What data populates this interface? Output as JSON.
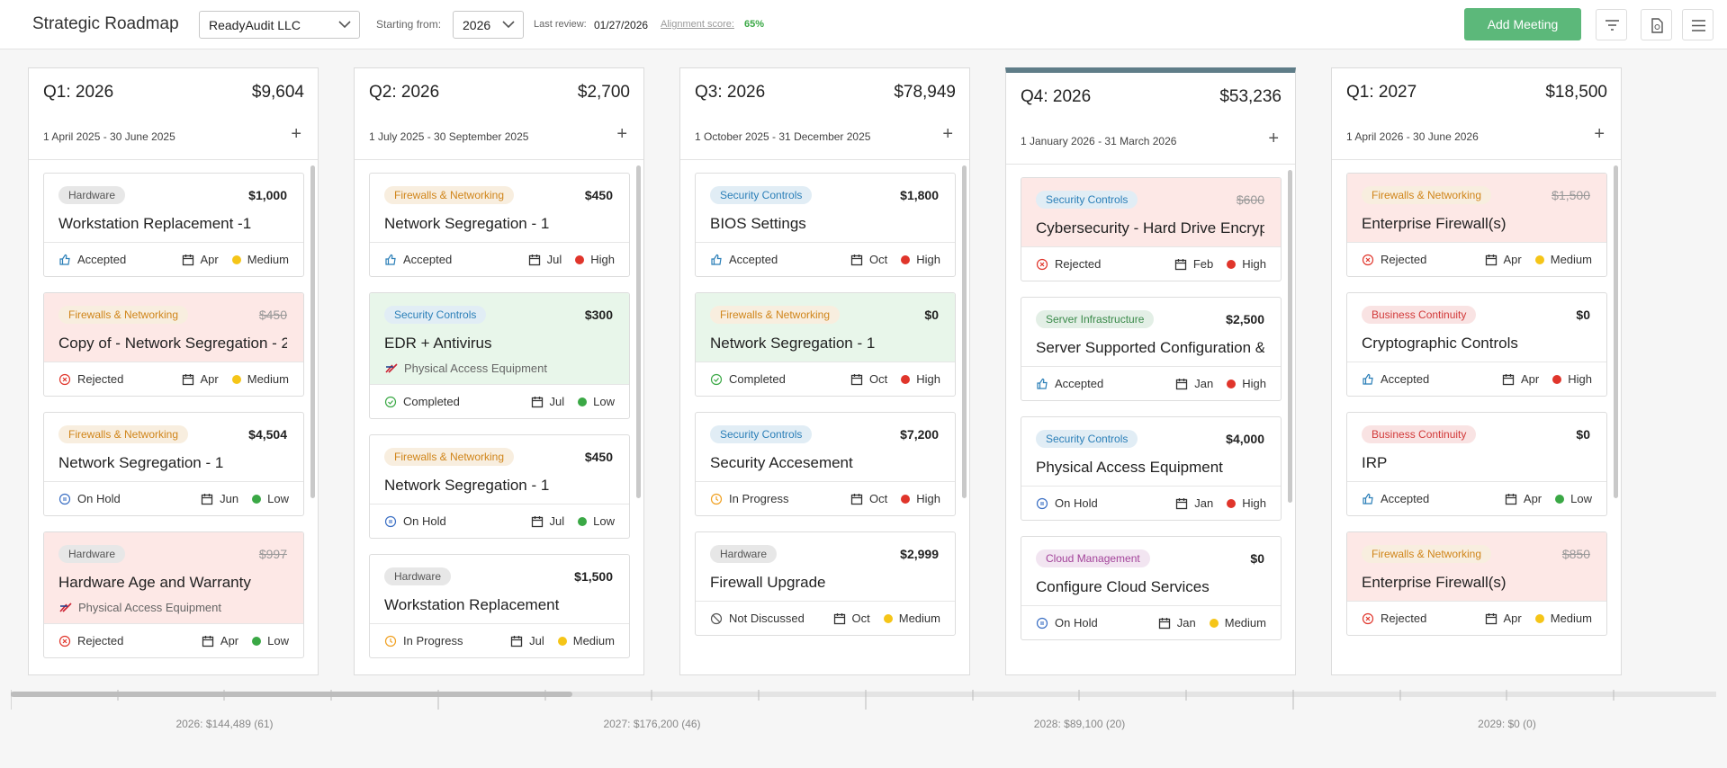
{
  "header": {
    "title": "Strategic Roadmap",
    "company": "ReadyAudit LLC",
    "starting_label": "Starting from:",
    "year": "2026",
    "last_review_label": "Last review:",
    "last_review": "01/27/2026",
    "alignment_label": "Alignment score:",
    "alignment": "65%",
    "add_button": "Add Meeting"
  },
  "columns": [
    {
      "title": "Q1: 2026",
      "total": "$9,604",
      "dates": "1 April 2025 - 30 June 2025",
      "cards": [
        {
          "tag": "Hardware",
          "tag_color": "#555555",
          "amount": "$1,000",
          "title": "Workstation Replacement -1",
          "status": "Accepted",
          "status_icon": "thumb",
          "month": "Apr",
          "priority": "Medium",
          "priority_color": "#f5c518"
        },
        {
          "tag": "Firewalls & Networking",
          "tag_color": "#d0851a",
          "amount": "$450",
          "struck": true,
          "card_color": "#fde8e6",
          "title": "Copy of - Network Segregation - 2",
          "status": "Rejected",
          "status_icon": "x",
          "month": "Apr",
          "priority": "Medium",
          "priority_color": "#f5c518"
        },
        {
          "tag": "Firewalls & Networking",
          "tag_color": "#d0851a",
          "amount": "$4,504",
          "title": "Network Segregation - 1",
          "status": "On Hold",
          "status_icon": "hold",
          "month": "Jun",
          "priority": "Low",
          "priority_color": "#3aa845"
        },
        {
          "tag": "Hardware",
          "tag_color": "#555555",
          "amount": "$997",
          "struck": true,
          "card_color": "#fde8e6",
          "title": "Hardware Age and Warranty",
          "sub": "Physical Access Equipment",
          "status": "Rejected",
          "status_icon": "x",
          "month": "Apr",
          "priority": "Low",
          "priority_color": "#3aa845"
        }
      ]
    },
    {
      "title": "Q2: 2026",
      "total": "$2,700",
      "dates": "1 July 2025 - 30 September 2025",
      "cards": [
        {
          "tag": "Firewalls & Networking",
          "tag_color": "#d0851a",
          "amount": "$450",
          "title": "Network Segregation - 1",
          "status": "Accepted",
          "status_icon": "thumb",
          "month": "Jul",
          "priority": "High",
          "priority_color": "#e0352b"
        },
        {
          "tag": "Security Controls",
          "tag_color": "#2b7fb8",
          "amount": "$300",
          "card_color": "#e8f6ea",
          "title": "EDR + Antivirus",
          "sub": "Physical Access Equipment",
          "status": "Completed",
          "status_icon": "check",
          "month": "Jul",
          "priority": "Low",
          "priority_color": "#3aa845"
        },
        {
          "tag": "Firewalls & Networking",
          "tag_color": "#d0851a",
          "amount": "$450",
          "title": "Network Segregation - 1",
          "status": "On Hold",
          "status_icon": "hold",
          "month": "Jul",
          "priority": "Low",
          "priority_color": "#3aa845"
        },
        {
          "tag": "Hardware",
          "tag_color": "#555555",
          "amount": "$1,500",
          "title": "Workstation Replacement",
          "status": "In Progress",
          "status_icon": "clock",
          "month": "Jul",
          "priority": "Medium",
          "priority_color": "#f5c518"
        }
      ]
    },
    {
      "title": "Q3: 2026",
      "total": "$78,949",
      "dates": "1 October 2025 - 31 December 2025",
      "cards": [
        {
          "tag": "Security Controls",
          "tag_color": "#2b7fb8",
          "amount": "$1,800",
          "title": "BIOS Settings",
          "status": "Accepted",
          "status_icon": "thumb",
          "month": "Oct",
          "priority": "High",
          "priority_color": "#e0352b"
        },
        {
          "tag": "Firewalls & Networking",
          "tag_color": "#d0851a",
          "amount": "$0",
          "card_color": "#e8f6ea",
          "title": "Network Segregation - 1",
          "status": "Completed",
          "status_icon": "check",
          "month": "Oct",
          "priority": "High",
          "priority_color": "#e0352b"
        },
        {
          "tag": "Security Controls",
          "tag_color": "#2b7fb8",
          "amount": "$7,200",
          "title": "Security Accesement",
          "status": "In Progress",
          "status_icon": "clock",
          "month": "Oct",
          "priority": "High",
          "priority_color": "#e0352b"
        },
        {
          "tag": "Hardware",
          "tag_color": "#555555",
          "amount": "$2,999",
          "title": "Firewall Upgrade",
          "status": "Not Discussed",
          "status_icon": "ban",
          "month": "Oct",
          "priority": "Medium",
          "priority_color": "#f5c518"
        }
      ]
    },
    {
      "title": "Q4: 2026",
      "total": "$53,236",
      "dates": "1 January 2026 - 31 March 2026",
      "highlight": true,
      "cards": [
        {
          "tag": "Security Controls",
          "tag_color": "#2b7fb8",
          "amount": "$600",
          "struck": true,
          "card_color": "#fde8e6",
          "title": "Cybersecurity - Hard Drive Encryp...",
          "status": "Rejected",
          "status_icon": "x",
          "month": "Feb",
          "priority": "High",
          "priority_color": "#e0352b"
        },
        {
          "tag": "Server Infrastructure",
          "tag_color": "#3a8a4a",
          "amount": "$2,500",
          "title": "Server Supported Configuration &...",
          "status": "Accepted",
          "status_icon": "thumb",
          "month": "Jan",
          "priority": "High",
          "priority_color": "#e0352b"
        },
        {
          "tag": "Security Controls",
          "tag_color": "#2b7fb8",
          "amount": "$4,000",
          "title": "Physical Access Equipment",
          "status": "On Hold",
          "status_icon": "hold",
          "month": "Jan",
          "priority": "High",
          "priority_color": "#e0352b"
        },
        {
          "tag": "Cloud Management",
          "tag_color": "#a3439a",
          "amount": "$0",
          "title": "Configure Cloud Services",
          "status": "On Hold",
          "status_icon": "hold",
          "month": "Jan",
          "priority": "Medium",
          "priority_color": "#f5c518"
        }
      ]
    },
    {
      "title": "Q1: 2027",
      "total": "$18,500",
      "dates": "1 April 2026 - 30 June 2026",
      "cards": [
        {
          "tag": "Firewalls & Networking",
          "tag_color": "#d0851a",
          "amount": "$1,500",
          "struck": true,
          "card_color": "#fde8e6",
          "title": "Enterprise Firewall(s)",
          "status": "Rejected",
          "status_icon": "x",
          "month": "Apr",
          "priority": "Medium",
          "priority_color": "#f5c518"
        },
        {
          "tag": "Business Continuity",
          "tag_color": "#d23a3a",
          "amount": "$0",
          "title": "Cryptographic Controls",
          "status": "Accepted",
          "status_icon": "thumb",
          "month": "Apr",
          "priority": "High",
          "priority_color": "#e0352b"
        },
        {
          "tag": "Business Continuity",
          "tag_color": "#d23a3a",
          "amount": "$0",
          "title": "IRP",
          "status": "Accepted",
          "status_icon": "thumb",
          "month": "Apr",
          "priority": "Low",
          "priority_color": "#3aa845"
        },
        {
          "tag": "Firewalls & Networking",
          "tag_color": "#d0851a",
          "amount": "$850",
          "struck": true,
          "card_color": "#fde8e6",
          "title": "Enterprise Firewall(s)",
          "status": "Rejected",
          "status_icon": "x",
          "month": "Apr",
          "priority": "Medium",
          "priority_color": "#f5c518"
        }
      ]
    }
  ],
  "timeline": [
    "2026: $144,489 (61)",
    "2027: $176,200 (46)",
    "2028: $89,100 (20)",
    "2029: $0 (0)"
  ]
}
